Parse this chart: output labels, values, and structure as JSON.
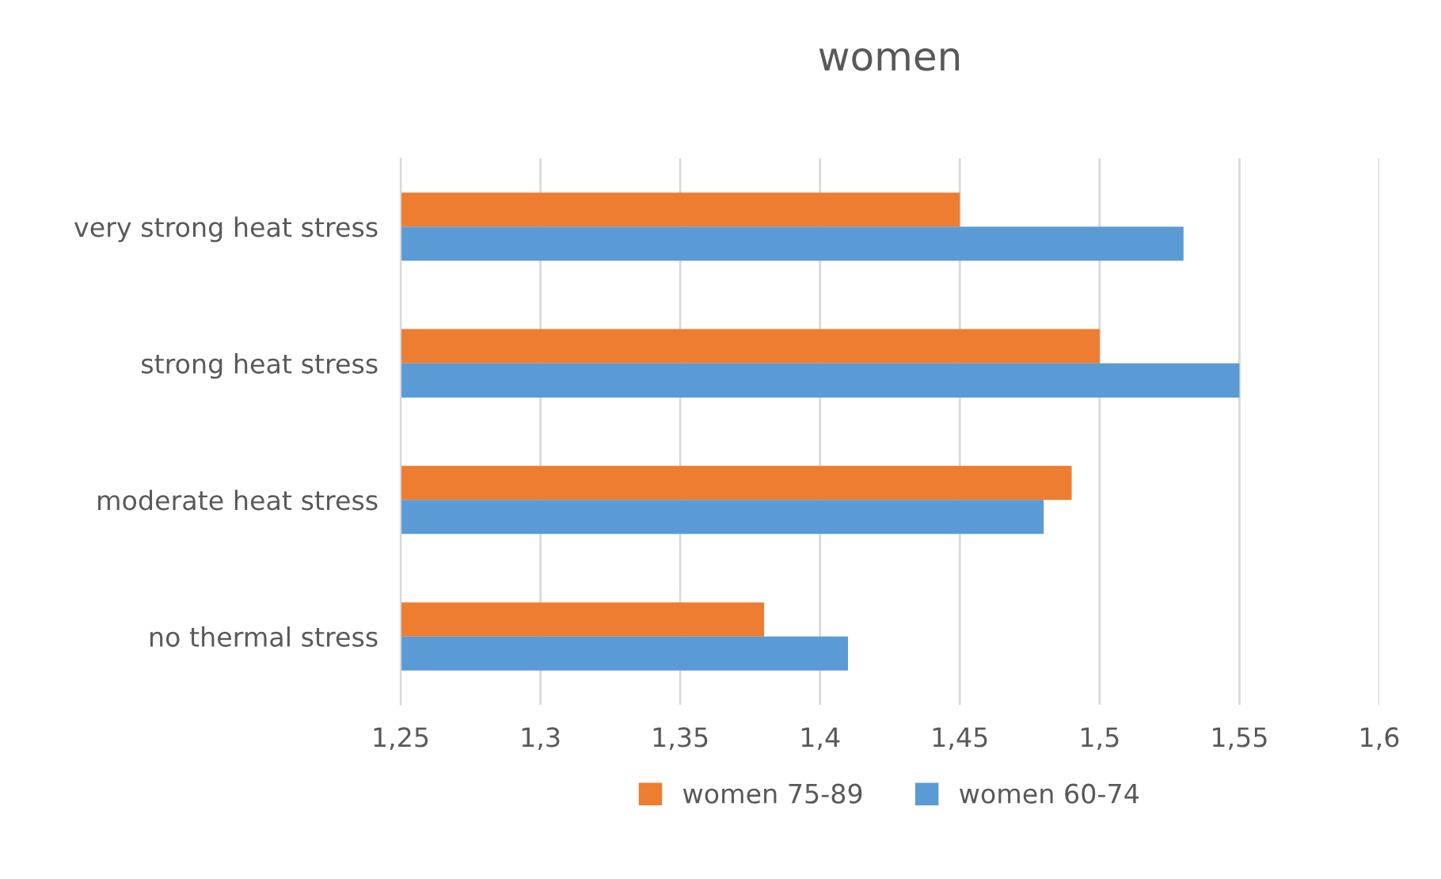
{
  "chart_data": {
    "type": "bar",
    "orientation": "horizontal",
    "title": "women",
    "categories": [
      "very strong heat stress",
      "strong heat stress",
      "moderate heat stress",
      "no thermal stress"
    ],
    "series": [
      {
        "name": "women 75-89",
        "color": "#ed7d31",
        "values": [
          1.45,
          1.5,
          1.49,
          1.38
        ]
      },
      {
        "name": "women 60-74",
        "color": "#5b9bd5",
        "values": [
          1.53,
          1.55,
          1.48,
          1.41
        ]
      }
    ],
    "xlim": [
      1.25,
      1.6
    ],
    "xticks": [
      {
        "value": 1.25,
        "label": "1,25"
      },
      {
        "value": 1.3,
        "label": "1,3"
      },
      {
        "value": 1.35,
        "label": "1,35"
      },
      {
        "value": 1.4,
        "label": "1,4"
      },
      {
        "value": 1.45,
        "label": "1,45"
      },
      {
        "value": 1.5,
        "label": "1,5"
      },
      {
        "value": 1.55,
        "label": "1,55"
      },
      {
        "value": 1.6,
        "label": "1,6"
      }
    ],
    "grid": "x",
    "legend": "bottom"
  }
}
